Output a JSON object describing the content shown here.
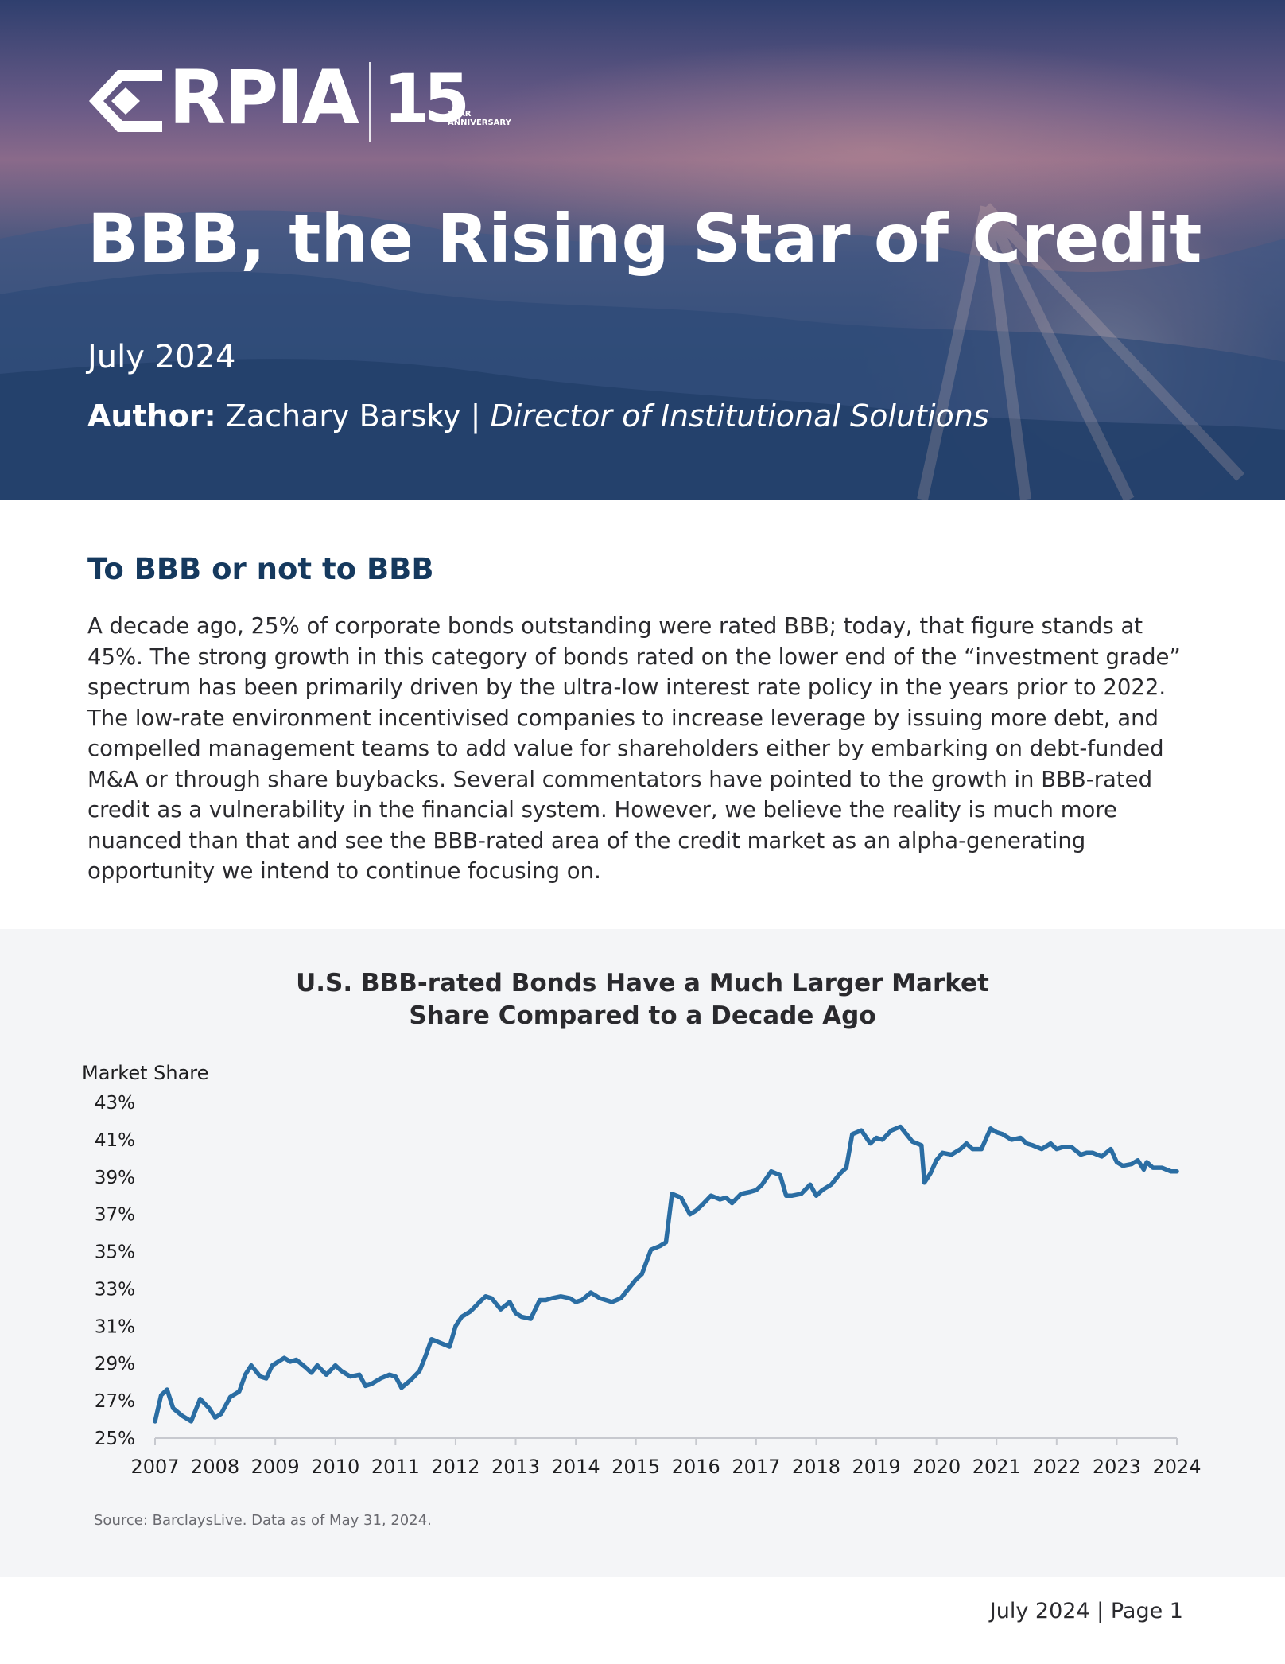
{
  "header": {
    "brand": "RPIA",
    "anniversary_number": "15",
    "anniversary_label_line1": "YEAR",
    "anniversary_label_line2": "ANNIVERSARY",
    "title": "BBB, the Rising Star of Credit",
    "date": "July 2024",
    "author_label": "Author:",
    "author_name": "Zachary Barsky",
    "author_separator": "|",
    "author_role": "Director of Institutional Solutions"
  },
  "intro": {
    "heading": "To BBB or not to BBB",
    "paragraph": "A decade ago, 25% of corporate bonds outstanding were rated BBB; today, that figure stands at 45%. The strong growth in this category of bonds rated on the lower end of the “investment grade” spectrum has been primarily driven by the ultra-low interest rate policy in the years prior to 2022. The low-rate environment incentivised companies to increase leverage by issuing more debt, and compelled management teams to add value for shareholders either by embarking on debt-funded M&A or through share buybacks. Several commentators have pointed to the growth in BBB-rated credit as a vulnerability in the financial system. However, we believe the reality is much more nuanced than that and see the BBB-rated area of the credit market as an alpha-generating opportunity we intend to continue focusing on."
  },
  "chart_data": {
    "type": "line",
    "title_line1": "U.S. BBB-rated Bonds Have a Much Larger Market",
    "title_line2": "Share Compared to a Decade Ago",
    "ylabel": "Market Share",
    "xlabel": "",
    "ylim": [
      25,
      43
    ],
    "xlim": [
      2007,
      2024
    ],
    "y_ticks": [
      "25%",
      "27%",
      "29%",
      "31%",
      "33%",
      "35%",
      "37%",
      "39%",
      "41%",
      "43%"
    ],
    "x_ticks": [
      "2007",
      "2008",
      "2009",
      "2010",
      "2011",
      "2012",
      "2013",
      "2014",
      "2015",
      "2016",
      "2017",
      "2018",
      "2019",
      "2020",
      "2021",
      "2022",
      "2023",
      "2024"
    ],
    "grid": false,
    "legend": "none",
    "line_color": "#2a6da3",
    "series": [
      {
        "x": [
          2007.0,
          2007.1,
          2007.2,
          2007.3,
          2007.45,
          2007.6,
          2007.75,
          2007.9,
          2008.0,
          2008.1,
          2008.25,
          2008.4,
          2008.5,
          2008.6,
          2008.7,
          2008.75,
          2008.85,
          2008.95,
          2009.05,
          2009.15,
          2009.25,
          2009.35,
          2009.5,
          2009.6,
          2009.7,
          2009.85,
          2010.0,
          2010.1,
          2010.25,
          2010.4,
          2010.5,
          2010.6,
          2010.75,
          2010.9,
          2011.0,
          2011.1,
          2011.25,
          2011.4,
          2011.5,
          2011.6,
          2011.75,
          2011.9,
          2012.0,
          2012.1,
          2012.25,
          2012.4,
          2012.5,
          2012.6,
          2012.75,
          2012.9,
          2013.0,
          2013.1,
          2013.25,
          2013.4,
          2013.5,
          2013.6,
          2013.75,
          2013.9,
          2014.0,
          2014.1,
          2014.25,
          2014.4,
          2014.5,
          2014.6,
          2014.75,
          2014.9,
          2015.0,
          2015.1,
          2015.25,
          2015.4,
          2015.5,
          2015.6,
          2015.75,
          2015.9,
          2016.0,
          2016.1,
          2016.25,
          2016.4,
          2016.5,
          2016.6,
          2016.75,
          2016.9,
          2017.0,
          2017.1,
          2017.25,
          2017.4,
          2017.5,
          2017.6,
          2017.75,
          2017.9,
          2018.0,
          2018.1,
          2018.25,
          2018.4,
          2018.5,
          2018.6,
          2018.75,
          2018.9,
          2019.0,
          2019.1,
          2019.25,
          2019.4,
          2019.5,
          2019.6,
          2019.75,
          2019.8,
          2019.9,
          2020.0,
          2020.1,
          2020.25,
          2020.4,
          2020.5,
          2020.6,
          2020.75,
          2020.9,
          2021.0,
          2021.1,
          2021.25,
          2021.4,
          2021.5,
          2021.6,
          2021.75,
          2021.9,
          2022.0,
          2022.1,
          2022.25,
          2022.4,
          2022.5,
          2022.6,
          2022.75,
          2022.9,
          2023.0,
          2023.1,
          2023.25,
          2023.35,
          2023.45,
          2023.5,
          2023.6,
          2023.75,
          2023.9,
          2024.0
        ],
        "y": [
          25.9,
          27.3,
          27.6,
          26.6,
          26.2,
          25.9,
          27.1,
          26.6,
          26.1,
          26.3,
          27.2,
          27.5,
          28.4,
          28.9,
          28.5,
          28.3,
          28.2,
          28.9,
          29.1,
          29.3,
          29.1,
          29.2,
          28.8,
          28.5,
          28.9,
          28.4,
          28.9,
          28.6,
          28.3,
          28.4,
          27.8,
          27.9,
          28.2,
          28.4,
          28.3,
          27.7,
          28.1,
          28.6,
          29.4,
          30.3,
          30.1,
          29.9,
          31.0,
          31.5,
          31.8,
          32.3,
          32.6,
          32.5,
          31.9,
          32.3,
          31.7,
          31.5,
          31.4,
          32.4,
          32.4,
          32.5,
          32.6,
          32.5,
          32.3,
          32.4,
          32.8,
          32.5,
          32.4,
          32.3,
          32.5,
          33.1,
          33.5,
          33.8,
          35.1,
          35.3,
          35.5,
          38.1,
          37.9,
          37.0,
          37.2,
          37.5,
          38.0,
          37.8,
          37.9,
          37.6,
          38.1,
          38.2,
          38.3,
          38.6,
          39.3,
          39.1,
          38.0,
          38.0,
          38.1,
          38.6,
          38.0,
          38.3,
          38.6,
          39.2,
          39.5,
          41.3,
          41.5,
          40.8,
          41.1,
          41.0,
          41.5,
          41.7,
          41.3,
          40.9,
          40.7,
          38.7,
          39.2,
          39.9,
          40.3,
          40.2,
          40.5,
          40.8,
          40.5,
          40.5,
          41.6,
          41.4,
          41.3,
          41.0,
          41.1,
          40.8,
          40.7,
          40.5,
          40.8,
          40.5,
          40.6,
          40.6,
          40.2,
          40.3,
          40.3,
          40.1,
          40.5,
          39.8,
          39.6,
          39.7,
          39.9,
          39.4,
          39.8,
          39.5,
          39.5,
          39.3,
          39.3
        ]
      }
    ],
    "source": "Source: BarclaysLive. Data as of May 31, 2024."
  },
  "footer": {
    "text": "July 2024 | Page 1"
  }
}
